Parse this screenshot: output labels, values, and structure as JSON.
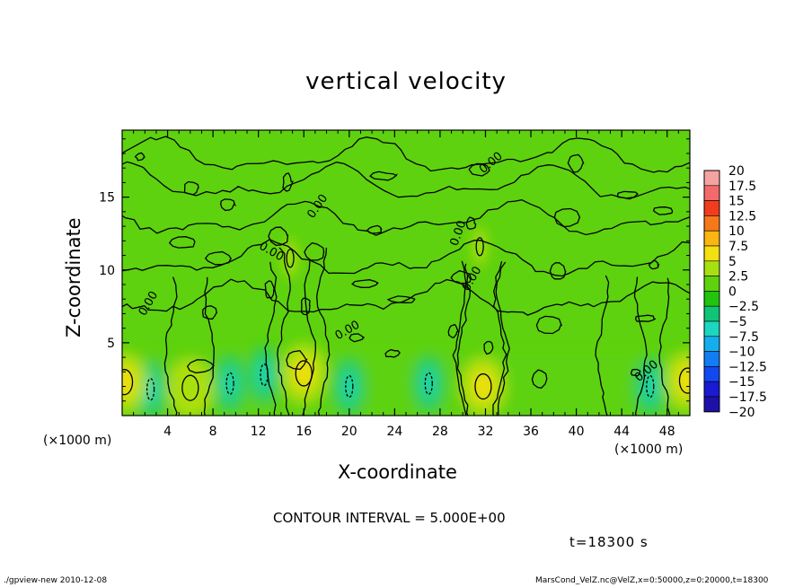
{
  "chart_data": {
    "type": "heatmap",
    "title": "vertical velocity",
    "xlabel": "X-coordinate",
    "ylabel": "Z-coordinate",
    "x_unit_label": "(×1000 m)",
    "xlim": [
      0,
      50
    ],
    "ylim": [
      0,
      19.6
    ],
    "x_ticks": [
      4,
      8,
      12,
      16,
      20,
      24,
      28,
      32,
      36,
      40,
      44,
      48
    ],
    "y_ticks": [
      5,
      10,
      15
    ],
    "colorbar": {
      "levels": [
        20,
        17.5,
        15,
        12.5,
        10,
        7.5,
        5,
        2.5,
        0,
        -2.5,
        -5,
        -7.5,
        -10,
        -12.5,
        -15,
        -17.5,
        -20
      ],
      "level_labels": [
        "20",
        "17.5",
        "15",
        "12.5",
        "10",
        "7.5",
        "5",
        "2.5",
        "0",
        "−2.5",
        "−5",
        "−7.5",
        "−10",
        "−12.5",
        "−15",
        "−17.5",
        "−20"
      ],
      "colors": [
        "#f7a2a2",
        "#f46a6a",
        "#f23c1e",
        "#f7781a",
        "#fbb612",
        "#f3df12",
        "#a7e012",
        "#5ed20e",
        "#22c40e",
        "#10c478",
        "#1cd6c0",
        "#14aeee",
        "#127cf2",
        "#1248f0",
        "#1a1ad2",
        "#1c10a8",
        "#5d0ea2"
      ]
    },
    "contour_label": "0.00",
    "updraft_cores": [
      {
        "x": 0.2,
        "z": 2.3,
        "w": 6
      },
      {
        "x": 6,
        "z": 1.9,
        "w": 5
      },
      {
        "x": 16,
        "z": 2.9,
        "w": 7
      },
      {
        "x": 31.8,
        "z": 2.0,
        "w": 6
      },
      {
        "x": 49.8,
        "z": 2.4,
        "w": 6
      },
      {
        "x": 14.8,
        "z": 10.8,
        "w": 4
      },
      {
        "x": 31.5,
        "z": 11.6,
        "w": 4
      }
    ],
    "downdraft_cores": [
      {
        "x": 2.5,
        "z": 1.8,
        "w": -4
      },
      {
        "x": 9.5,
        "z": 2.2,
        "w": -5
      },
      {
        "x": 12.5,
        "z": 2.8,
        "w": -4
      },
      {
        "x": 27,
        "z": 2.2,
        "w": -3
      },
      {
        "x": 46.5,
        "z": 2.0,
        "w": -4
      },
      {
        "x": 20,
        "z": 2.0,
        "w": -2
      }
    ]
  },
  "text": {
    "contour_interval": "CONTOUR INTERVAL = 5.000E+00",
    "time": "t=18300 s",
    "footer_left": "./gpview-new  2010-12-08",
    "footer_right": "MarsCond_VelZ.nc@VelZ,x=0:50000,z=0:20000,t=18300"
  }
}
